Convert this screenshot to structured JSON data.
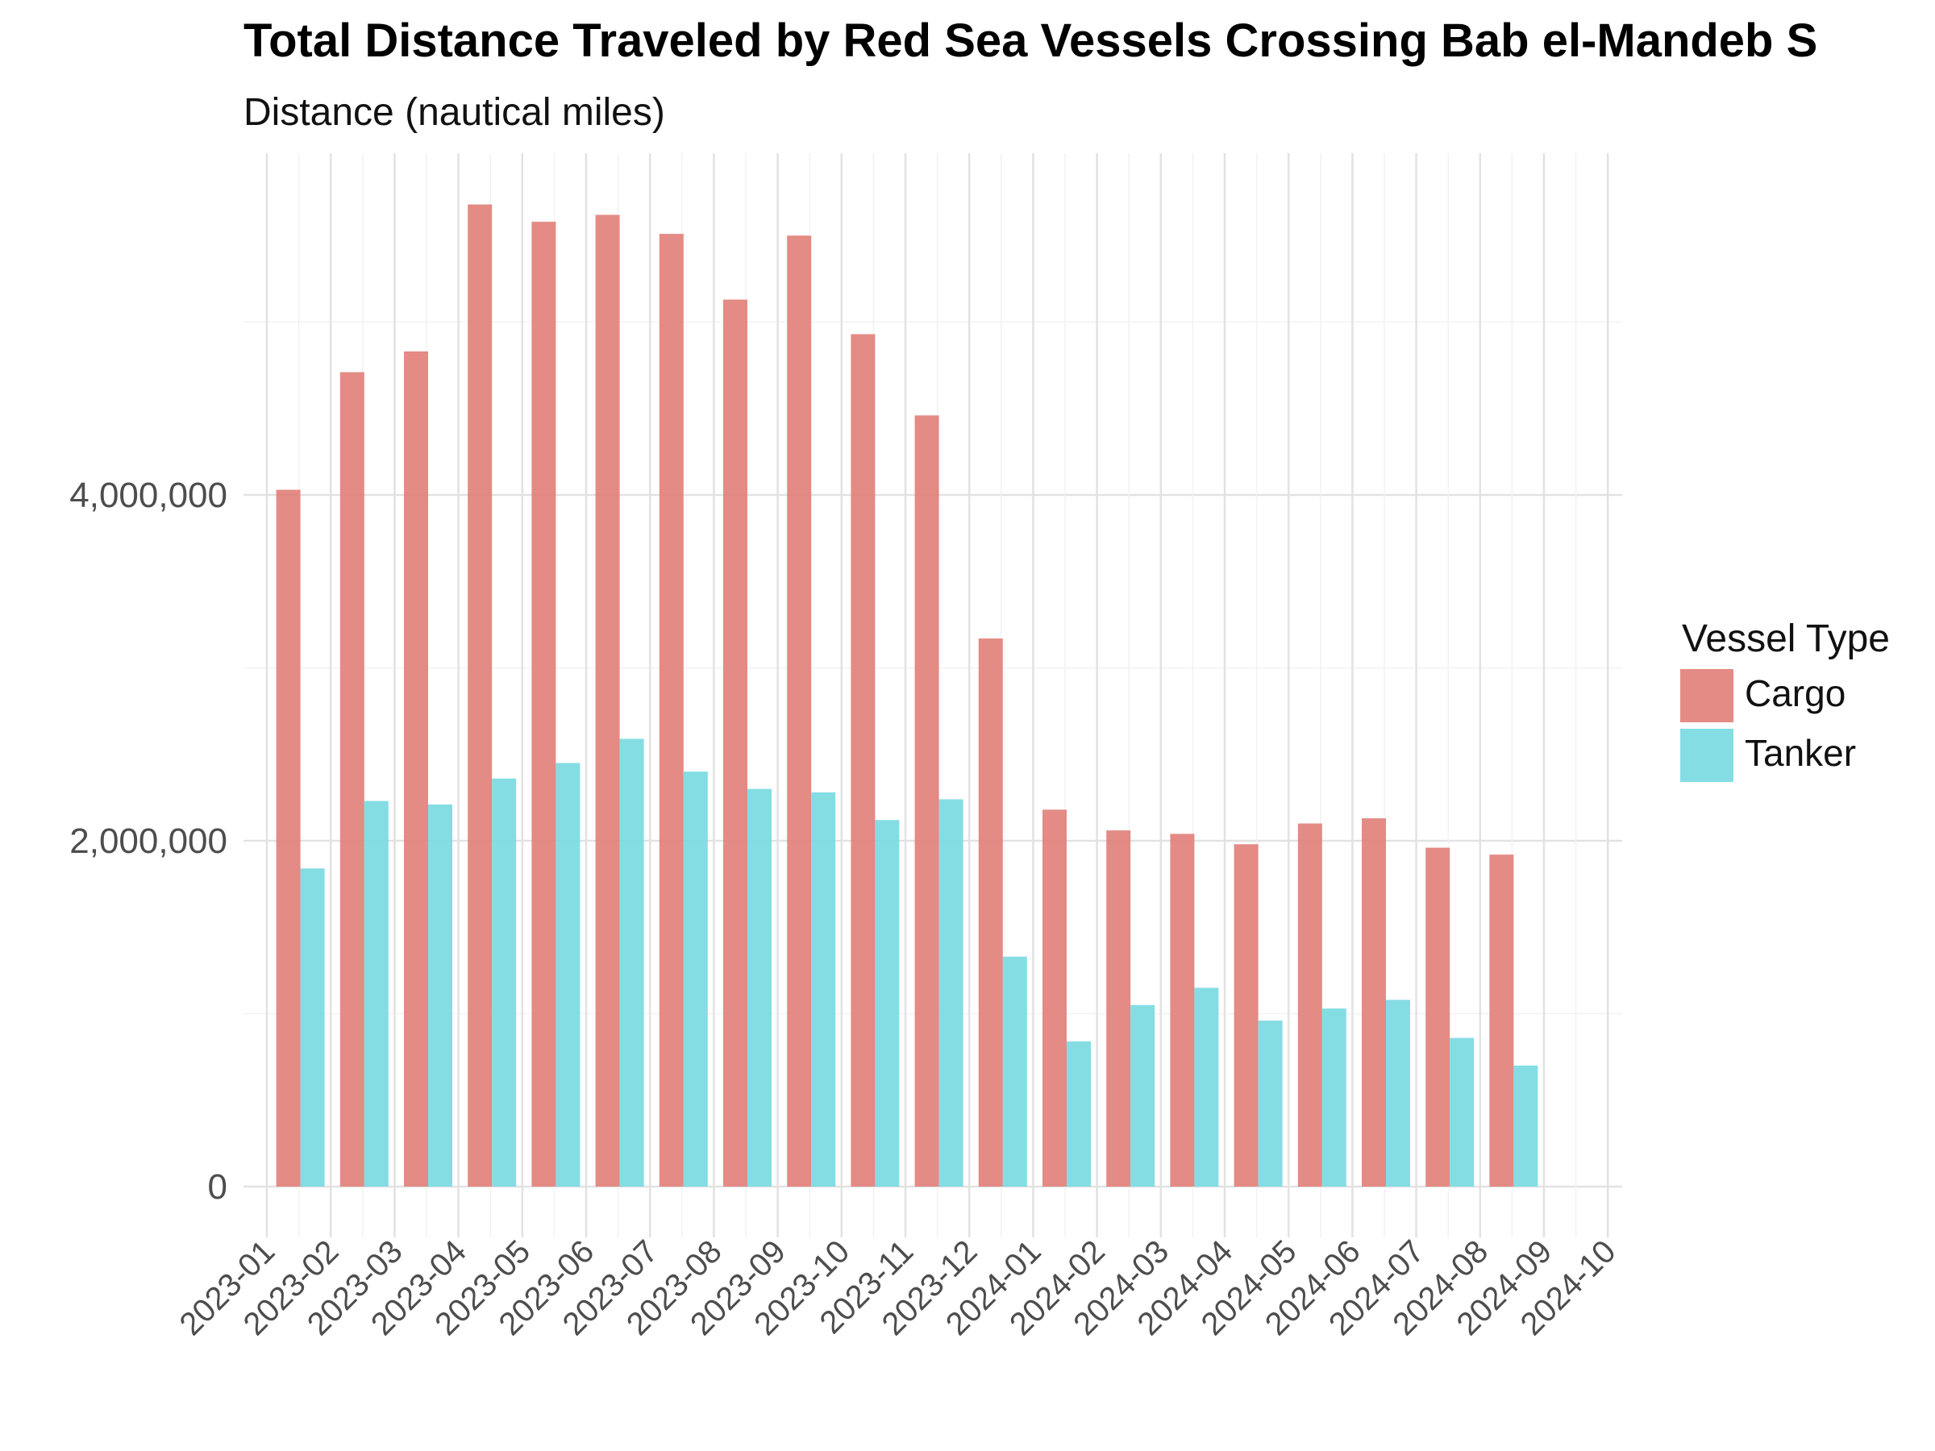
{
  "chart_data": {
    "type": "bar",
    "title": "Total Distance Traveled by Red Sea Vessels Crossing Bab el-Mandeb S",
    "subtitle": "Distance (nautical miles)",
    "xlabel": "",
    "ylabel": "",
    "ylim": [
      -300000,
      6000000
    ],
    "y_ticks": [
      0,
      2000000,
      4000000
    ],
    "y_tick_labels": [
      "0",
      "2,000,000",
      "4,000,000"
    ],
    "x_tick_labels": [
      "2023-01",
      "2023-02",
      "2023-03",
      "2023-04",
      "2023-05",
      "2023-06",
      "2023-07",
      "2023-08",
      "2023-09",
      "2023-10",
      "2023-11",
      "2023-12",
      "2024-01",
      "2024-02",
      "2024-03",
      "2024-04",
      "2024-05",
      "2024-06",
      "2024-07",
      "2024-08",
      "2024-09",
      "2024-10"
    ],
    "categories": [
      "2023-01",
      "2023-02",
      "2023-03",
      "2023-04",
      "2023-05",
      "2023-06",
      "2023-07",
      "2023-08",
      "2023-09",
      "2023-10",
      "2023-11",
      "2023-12",
      "2024-01",
      "2024-02",
      "2024-03",
      "2024-04",
      "2024-05",
      "2024-06",
      "2024-07",
      "2024-08"
    ],
    "legend": {
      "title": "Vessel Type",
      "position": "right"
    },
    "grid": true,
    "series": [
      {
        "name": "Cargo",
        "color": "#e07b74",
        "values": [
          4030000,
          4710000,
          4830000,
          5680000,
          5580000,
          5620000,
          5510000,
          5130000,
          5500000,
          4930000,
          4460000,
          3170000,
          2180000,
          2060000,
          2040000,
          1980000,
          2100000,
          2130000,
          1960000,
          1920000
        ]
      },
      {
        "name": "Tanker",
        "color": "#74d8e0",
        "values": [
          1840000,
          2230000,
          2210000,
          2360000,
          2450000,
          2590000,
          2400000,
          2300000,
          2280000,
          2120000,
          2240000,
          1330000,
          840000,
          1050000,
          1150000,
          960000,
          1030000,
          1080000,
          860000,
          700000
        ]
      }
    ]
  }
}
